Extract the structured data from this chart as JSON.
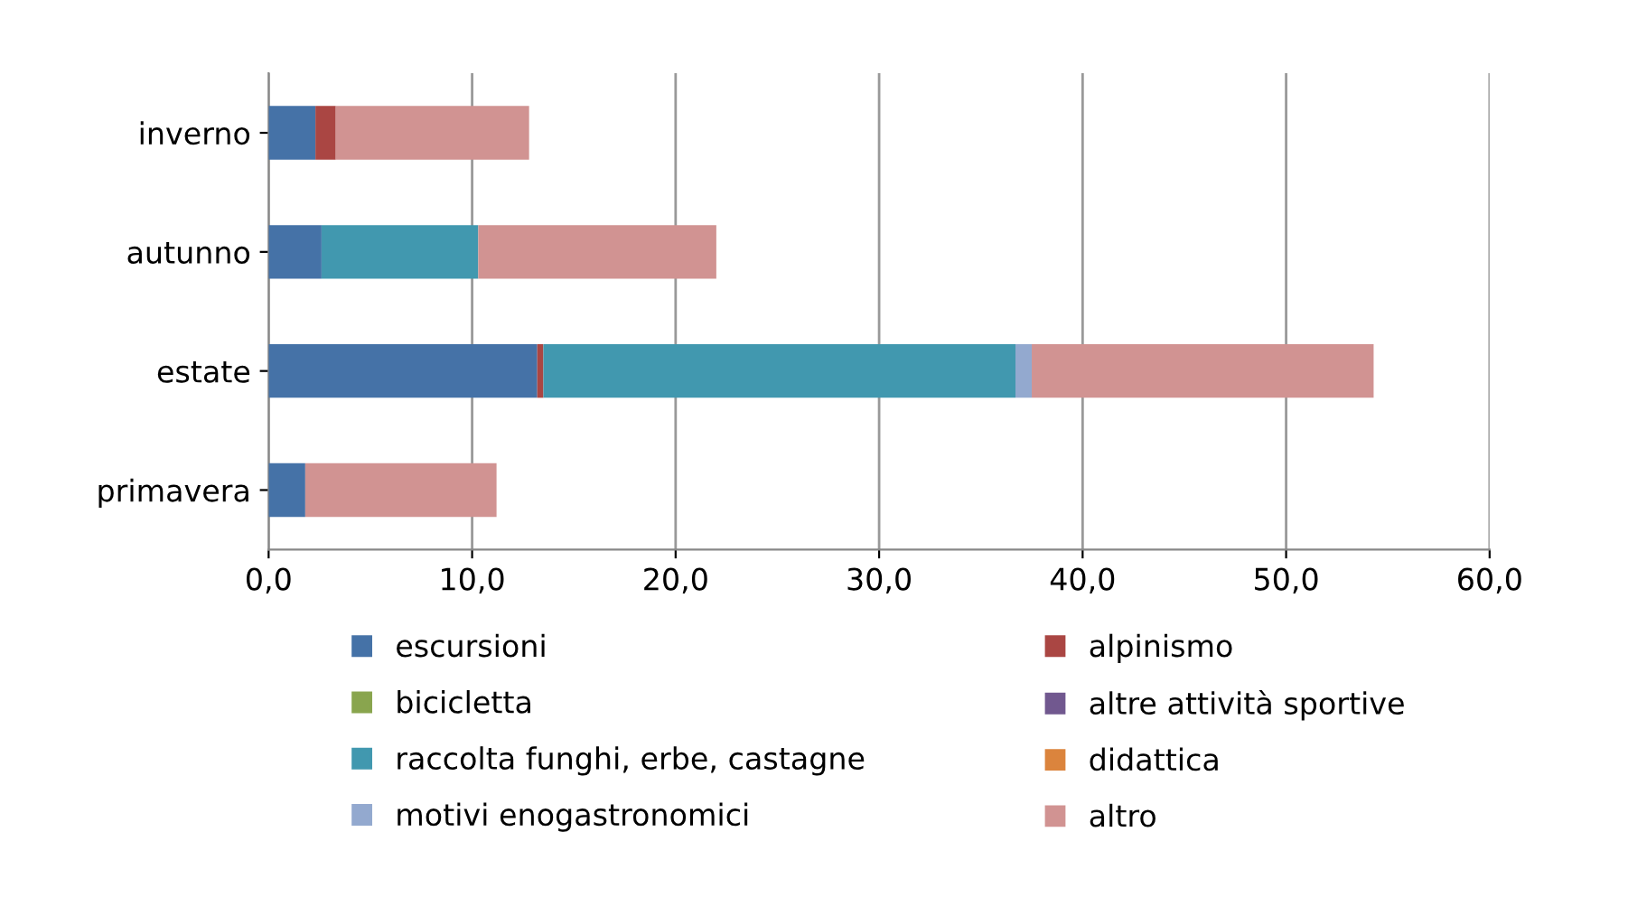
{
  "chart_data": {
    "type": "bar",
    "orientation": "horizontal",
    "stacked": true,
    "categories": [
      "inverno",
      "autunno",
      "estate",
      "primavera"
    ],
    "series": [
      {
        "name": "escursioni",
        "color": "#4572a7",
        "values": [
          2.3,
          2.6,
          13.2,
          1.8
        ]
      },
      {
        "name": "alpinismo",
        "color": "#aa4643",
        "values": [
          1.0,
          0,
          0.3,
          0
        ]
      },
      {
        "name": "bicicletta",
        "color": "#89a54e",
        "values": [
          0,
          0,
          0,
          0
        ]
      },
      {
        "name": "altre attività sportive",
        "color": "#71588f",
        "values": [
          0,
          0,
          0,
          0
        ]
      },
      {
        "name": "raccolta funghi, erbe, castagne",
        "color": "#4198af",
        "values": [
          0,
          7.7,
          23.2,
          0
        ]
      },
      {
        "name": "didattica",
        "color": "#db843d",
        "values": [
          0,
          0,
          0,
          0
        ]
      },
      {
        "name": "motivi enogastronomici",
        "color": "#93a9cf",
        "values": [
          0,
          0,
          0.8,
          0
        ]
      },
      {
        "name": "altro",
        "color": "#d19392",
        "values": [
          9.5,
          11.7,
          16.8,
          9.4
        ]
      }
    ],
    "xlim": [
      0,
      60
    ],
    "xticks": [
      {
        "value": 0,
        "label": "0,0"
      },
      {
        "value": 10,
        "label": "10,0"
      },
      {
        "value": 20,
        "label": "20,0"
      },
      {
        "value": 30,
        "label": "30,0"
      },
      {
        "value": 40,
        "label": "40,0"
      },
      {
        "value": 50,
        "label": "50,0"
      },
      {
        "value": 60,
        "label": "60,0"
      }
    ],
    "grid": "x",
    "legend": "bottom"
  }
}
